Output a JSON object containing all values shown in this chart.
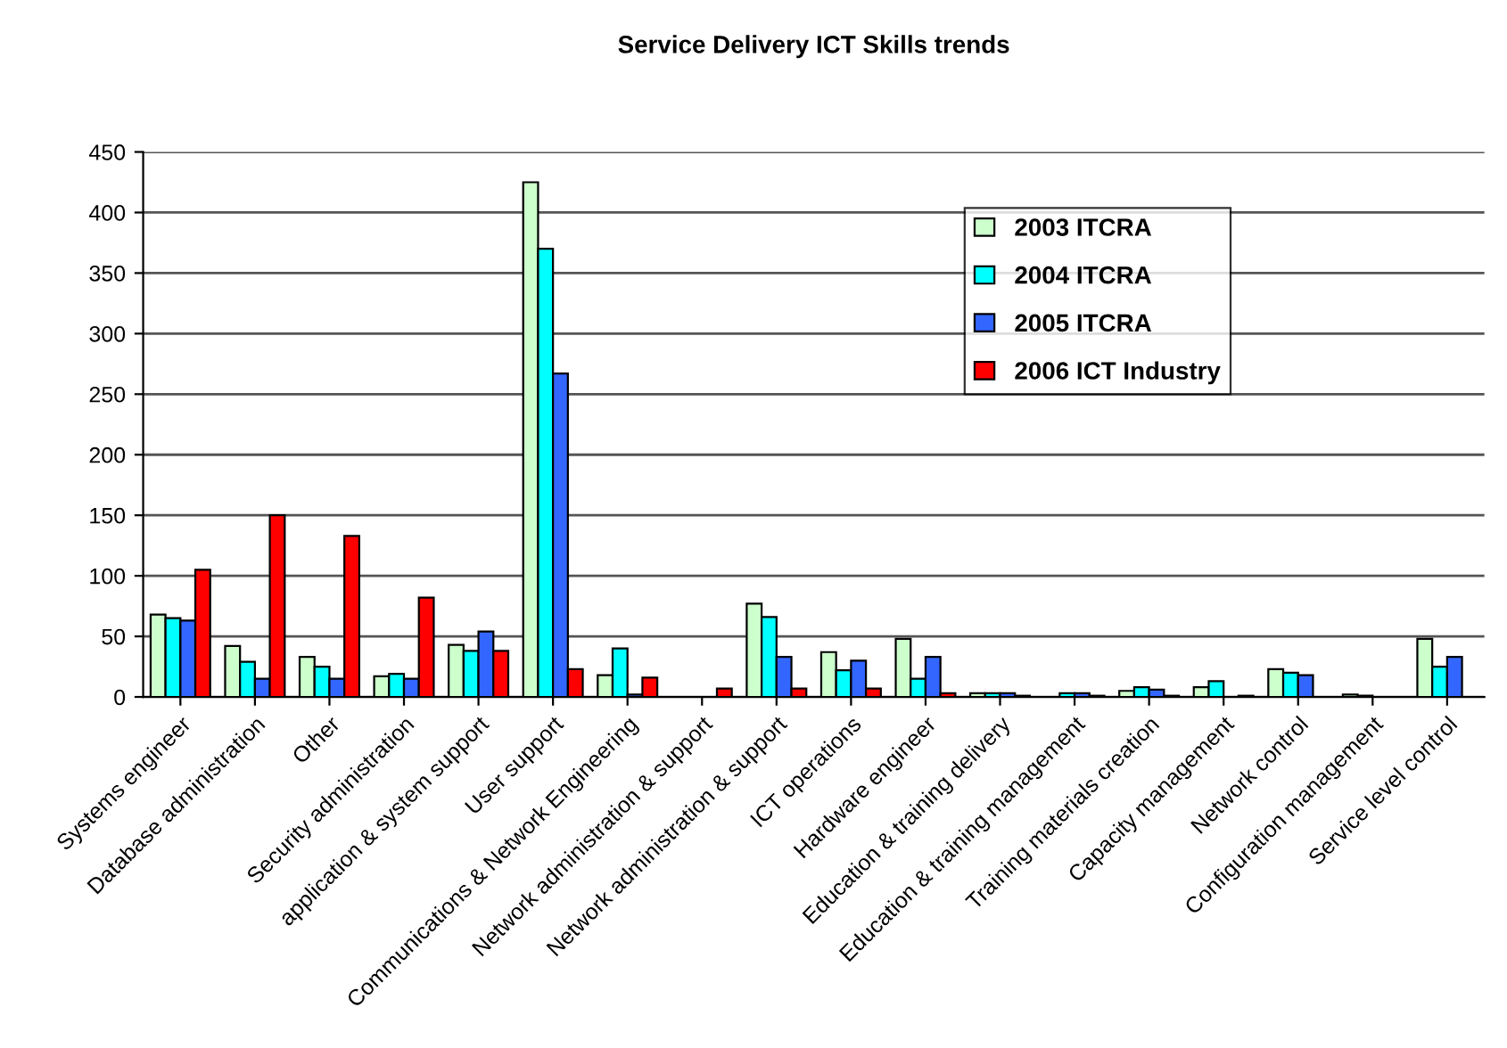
{
  "chart_data": {
    "type": "bar",
    "title": "Service Delivery ICT Skills trends",
    "categories": [
      "Systems engineer",
      "Database administration",
      "Other",
      "Security administration",
      "application & system support",
      "User support",
      "Communications & Network Engineering",
      "Network administration & support",
      "Network administration & support",
      "ICT operations",
      "Hardware engineer",
      "Education & training delivery",
      "Education & training management",
      "Training materials creation",
      "Capacity management",
      "Network control",
      "Configuration management",
      "Service level control"
    ],
    "series": [
      {
        "name": "2003 ITCRA",
        "color": "#ccffcc",
        "values": [
          68,
          42,
          33,
          17,
          43,
          425,
          18,
          null,
          77,
          37,
          48,
          3,
          null,
          5,
          8,
          23,
          2,
          48
        ]
      },
      {
        "name": "2004 ITCRA",
        "color": "#00ffff",
        "values": [
          65,
          29,
          25,
          19,
          38,
          370,
          40,
          0,
          66,
          22,
          15,
          3,
          3,
          8,
          13,
          20,
          1,
          25
        ]
      },
      {
        "name": "2005 ITCRA",
        "color": "#3366ff",
        "values": [
          63,
          15,
          15,
          15,
          54,
          267,
          2,
          0,
          33,
          30,
          33,
          3,
          3,
          6,
          0,
          18,
          0,
          33
        ]
      },
      {
        "name": "2006 ICT Industry",
        "color": "#ff0000",
        "values": [
          105,
          150,
          133,
          82,
          38,
          23,
          16,
          7,
          7,
          7,
          3,
          1,
          1,
          1,
          1,
          0,
          0,
          0
        ]
      }
    ],
    "ylim": [
      0,
      450
    ],
    "yticks": [
      0,
      50,
      100,
      150,
      200,
      250,
      300,
      350,
      400,
      450
    ],
    "grid": "y",
    "legend": "top right"
  }
}
